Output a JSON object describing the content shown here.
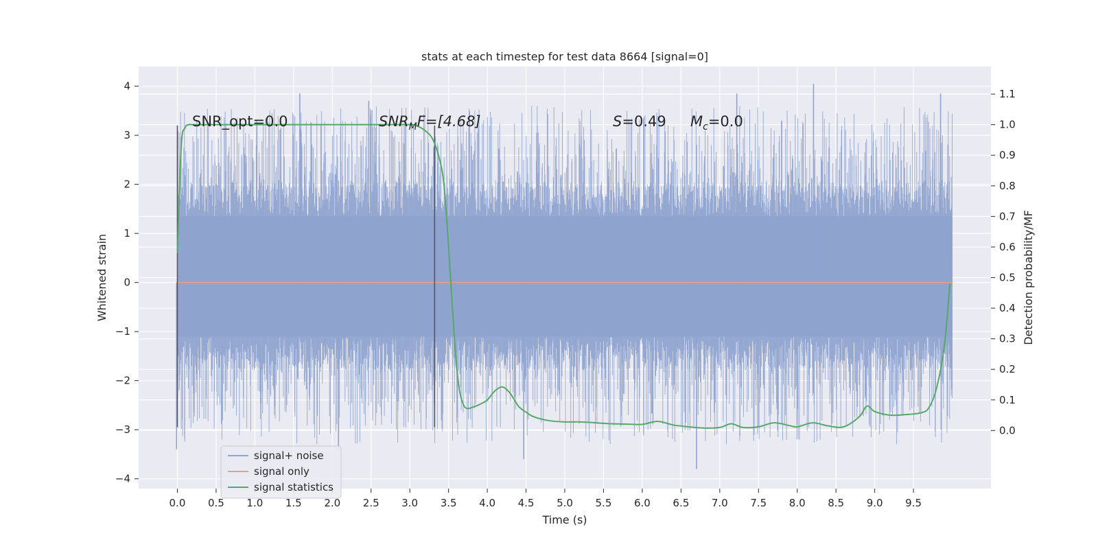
{
  "chart_data": {
    "type": "line",
    "title": "stats at each timestep for test data 8664 [signal=0]",
    "xlabel": "Time (s)",
    "ylabel_left": "Whitened strain",
    "ylabel_right": "Detection probability/MF",
    "xlim": [
      -0.5,
      10.5
    ],
    "ylim_left": [
      -4.2,
      4.4
    ],
    "ylim_right": [
      -0.19,
      1.19
    ],
    "xticks": [
      0.0,
      0.5,
      1.0,
      1.5,
      2.0,
      2.5,
      3.0,
      3.5,
      4.0,
      4.5,
      5.0,
      5.5,
      6.0,
      6.5,
      7.0,
      7.5,
      8.0,
      8.5,
      9.0,
      9.5
    ],
    "xtick_labels": [
      "0.0",
      "0.5",
      "1.0",
      "1.5",
      "2.0",
      "2.5",
      "3.0",
      "3.5",
      "4.0",
      "4.5",
      "5.0",
      "5.5",
      "6.0",
      "6.5",
      "7.0",
      "7.5",
      "8.0",
      "8.5",
      "9.0",
      "9.5"
    ],
    "yticks_left": [
      4,
      3,
      2,
      1,
      0,
      -1,
      -2,
      -3,
      -4
    ],
    "ytick_labels_left": [
      "4",
      "3",
      "2",
      "1",
      "0",
      "−1",
      "−2",
      "−3",
      "−4"
    ],
    "yticks_right": [
      1.1,
      1.0,
      0.9,
      0.8,
      0.7,
      0.6,
      0.5,
      0.4,
      0.3,
      0.2,
      0.1,
      0.0
    ],
    "ytick_labels_right": [
      "1.1",
      "1.0",
      "0.9",
      "0.8",
      "0.7",
      "0.6",
      "0.5",
      "0.4",
      "0.3",
      "0.2",
      "0.1",
      "0.0"
    ],
    "grid": true,
    "legend": {
      "position": "lower-left",
      "entries": [
        {
          "label": "signal+ noise",
          "color": "#8fa3cf"
        },
        {
          "label": "signal only",
          "color": "#e5a18a"
        },
        {
          "label": "signal statistics",
          "color": "#55a868"
        }
      ]
    },
    "annotations": {
      "snr_opt": "SNR_opt=0.0",
      "snr_mf_label": "SNR",
      "snr_mf_sub": "M",
      "snr_mf_rest": "F=[4.68]",
      "s_label": "S",
      "s_value": "=0.49",
      "mc_label": "M",
      "mc_sub": "c",
      "mc_value": "=0.0"
    },
    "vertical_markers": [
      {
        "x": 0.0,
        "y_range": [
          -2.95,
          3.2
        ]
      },
      {
        "x": 3.32,
        "y_range": [
          -2.95,
          3.2
        ]
      }
    ],
    "series": [
      {
        "name": "signal+ noise",
        "axis": "left",
        "color": "#8fa3cf",
        "x_range": [
          0.0,
          10.0
        ],
        "band": [
          -1.1,
          1.35
        ],
        "noise_envelope": [
          -3.3,
          3.6
        ],
        "notable_peaks": [
          {
            "x": 1.58,
            "y": 3.85
          },
          {
            "x": 2.47,
            "y": 3.7
          },
          {
            "x": 8.21,
            "y": 4.05
          },
          {
            "x": 7.22,
            "y": 3.85
          },
          {
            "x": 9.85,
            "y": 3.85
          },
          {
            "x": 4.47,
            "y": -3.6
          },
          {
            "x": 6.7,
            "y": -3.8
          },
          {
            "x": 2.08,
            "y": -3.4
          },
          {
            "x": -0.01,
            "y": -3.4
          }
        ]
      },
      {
        "name": "signal only",
        "axis": "left",
        "color": "#e5a18a",
        "x": [
          0.0,
          10.0
        ],
        "y": [
          0.0,
          0.0
        ]
      },
      {
        "name": "signal statistics",
        "axis": "right",
        "color": "#55a868",
        "x": [
          0.0,
          0.05,
          0.1,
          0.15,
          0.2,
          0.5,
          1.0,
          1.5,
          2.0,
          2.5,
          3.0,
          3.1,
          3.2,
          3.3,
          3.4,
          3.45,
          3.5,
          3.55,
          3.6,
          3.65,
          3.7,
          3.75,
          3.8,
          3.9,
          4.0,
          4.1,
          4.2,
          4.3,
          4.4,
          4.5,
          4.6,
          4.8,
          5.0,
          5.2,
          5.4,
          5.6,
          5.8,
          6.0,
          6.2,
          6.4,
          6.6,
          6.8,
          7.0,
          7.15,
          7.3,
          7.5,
          7.7,
          7.9,
          8.0,
          8.2,
          8.4,
          8.6,
          8.8,
          8.9,
          9.0,
          9.2,
          9.4,
          9.6,
          9.7,
          9.8,
          9.9,
          9.97
        ],
        "y": [
          0.58,
          0.93,
          0.99,
          1.0,
          1.0,
          1.0,
          1.0,
          1.0,
          1.0,
          1.0,
          1.0,
          0.995,
          0.98,
          0.95,
          0.87,
          0.78,
          0.6,
          0.4,
          0.22,
          0.12,
          0.08,
          0.072,
          0.075,
          0.085,
          0.1,
          0.13,
          0.142,
          0.12,
          0.08,
          0.06,
          0.045,
          0.032,
          0.028,
          0.028,
          0.025,
          0.022,
          0.021,
          0.02,
          0.03,
          0.018,
          0.012,
          0.008,
          0.01,
          0.022,
          0.01,
          0.012,
          0.025,
          0.016,
          0.012,
          0.025,
          0.015,
          0.012,
          0.045,
          0.08,
          0.062,
          0.05,
          0.052,
          0.058,
          0.075,
          0.14,
          0.28,
          0.48
        ]
      }
    ]
  }
}
